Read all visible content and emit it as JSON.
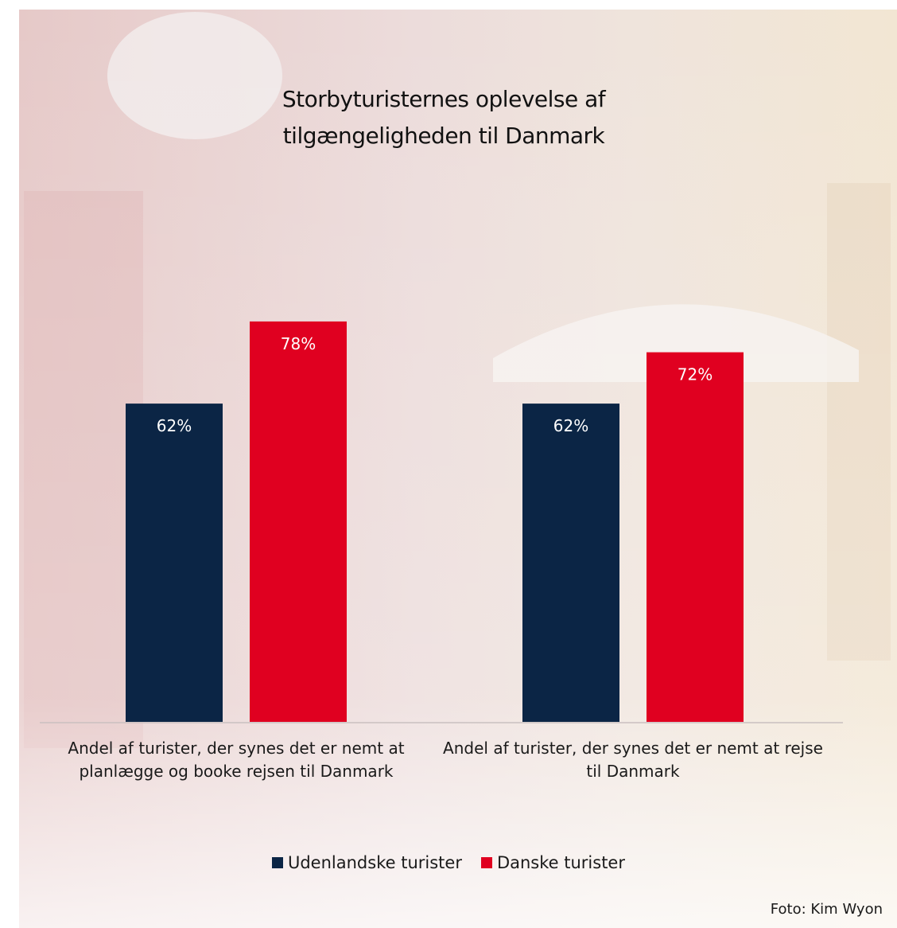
{
  "chart_data": {
    "type": "bar",
    "title": "Storbyturisternes oplevelse af tilgængeligheden til Danmark",
    "categories": [
      "Andel af turister, der synes det er nemt at planlægge og booke rejsen til Danmark",
      "Andel af turister, der synes det er nemt at rejse til Danmark"
    ],
    "series": [
      {
        "name": "Udenlandske turister",
        "color": "#0b2545",
        "values": [
          62,
          62
        ],
        "value_labels": [
          "62%",
          "62%"
        ]
      },
      {
        "name": "Danske turister",
        "color": "#e00020",
        "values": [
          78,
          72
        ],
        "value_labels": [
          "78%",
          "72%"
        ]
      }
    ],
    "caption": "Foto: Kim Wyon"
  }
}
